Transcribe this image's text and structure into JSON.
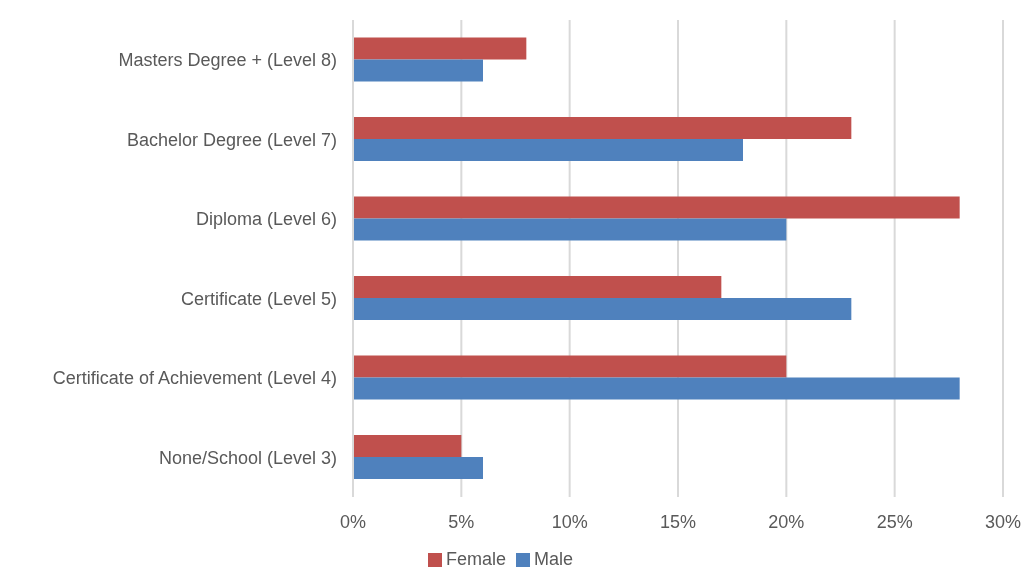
{
  "chart_data": {
    "type": "bar",
    "orientation": "horizontal",
    "categories": [
      "Masters Degree + (Level 8)",
      "Bachelor Degree (Level 7)",
      "Diploma (Level 6)",
      "Certificate (Level 5)",
      "Certificate of Achievement (Level 4)",
      "None/School (Level 3)"
    ],
    "series": [
      {
        "name": "Female",
        "color": "#c0504d",
        "values": [
          8,
          23,
          28,
          17,
          20,
          5
        ]
      },
      {
        "name": "Male",
        "color": "#4f81bd",
        "values": [
          6,
          18,
          20,
          23,
          28,
          6
        ]
      }
    ],
    "xlim": [
      0,
      30
    ],
    "xticks": [
      {
        "value": 0,
        "label": "0%"
      },
      {
        "value": 5,
        "label": "5%"
      },
      {
        "value": 10,
        "label": "10%"
      },
      {
        "value": 15,
        "label": "15%"
      },
      {
        "value": 20,
        "label": "20%"
      },
      {
        "value": 25,
        "label": "25%"
      },
      {
        "value": 30,
        "label": "30%"
      }
    ],
    "grid": "x",
    "legend": "bottom"
  }
}
